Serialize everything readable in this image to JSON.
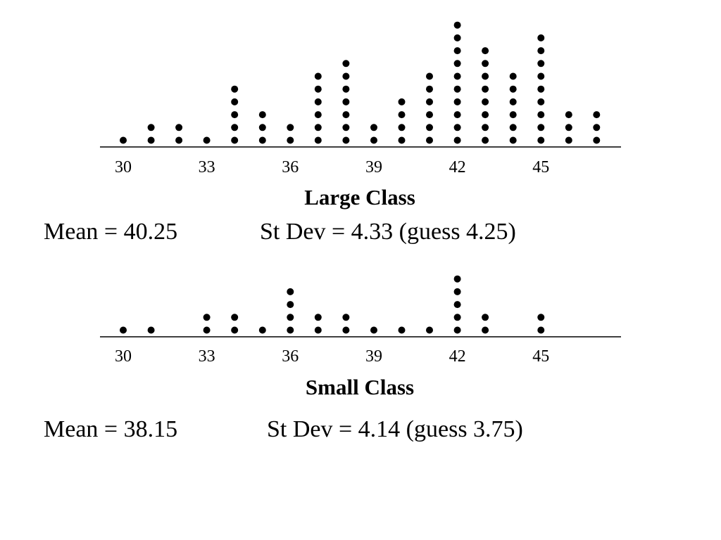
{
  "chart_data": [
    {
      "type": "dot plot",
      "title": "Large Class",
      "xlim": [
        29.2,
        47.8
      ],
      "ticks": [
        30,
        33,
        36,
        39,
        42,
        45
      ],
      "x": [
        30,
        31,
        32,
        33,
        34,
        35,
        36,
        37,
        38,
        39,
        40,
        41,
        42,
        43,
        44,
        45,
        46,
        47
      ],
      "counts": [
        1,
        2,
        2,
        1,
        5,
        3,
        2,
        6,
        7,
        2,
        4,
        6,
        10,
        8,
        6,
        9,
        3,
        3
      ],
      "stats": {
        "mean": "Mean = 40.25",
        "stdev": "St Dev = 4.33 (guess 4.25)"
      }
    },
    {
      "type": "dot plot",
      "title": "Small Class",
      "xlim": [
        29.2,
        47.8
      ],
      "ticks": [
        30,
        33,
        36,
        39,
        42,
        45
      ],
      "x": [
        30,
        31,
        32,
        33,
        34,
        35,
        36,
        37,
        38,
        39,
        40,
        41,
        42,
        43,
        44,
        45,
        46,
        47
      ],
      "counts": [
        1,
        1,
        0,
        2,
        2,
        1,
        4,
        2,
        2,
        1,
        1,
        1,
        5,
        2,
        0,
        2,
        0,
        0
      ],
      "stats": {
        "mean": "Mean = 38.15",
        "stdev": "St Dev = 4.14 (guess 3.75)"
      }
    }
  ]
}
